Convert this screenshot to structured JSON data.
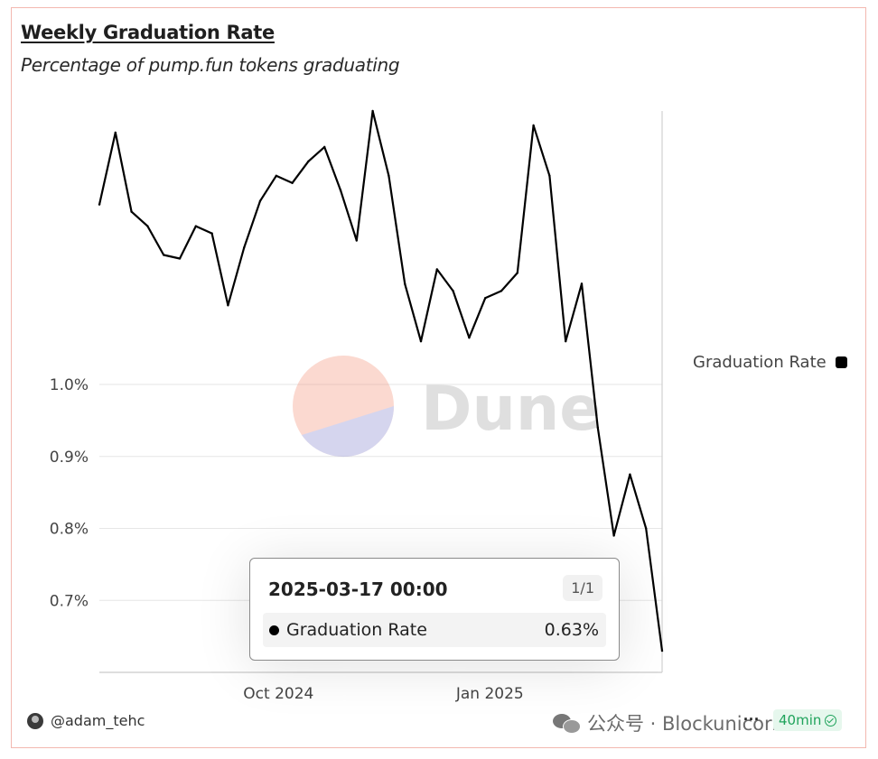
{
  "chart_data": {
    "type": "line",
    "title": "Weekly Graduation Rate",
    "subtitle": "Percentage of pump.fun tokens graduating",
    "series": [
      {
        "name": "Graduation Rate",
        "color": "#000000",
        "values": [
          1.25,
          1.35,
          1.24,
          1.22,
          1.18,
          1.175,
          1.22,
          1.21,
          1.11,
          1.19,
          1.255,
          1.29,
          1.28,
          1.31,
          1.33,
          1.27,
          1.2,
          1.38,
          1.29,
          1.14,
          1.06,
          1.16,
          1.13,
          1.065,
          1.12,
          1.13,
          1.155,
          1.36,
          1.29,
          1.06,
          1.14,
          0.94,
          0.79,
          0.875,
          0.8,
          0.63
        ]
      }
    ],
    "x_start": "2024-07-15",
    "x_end": "2025-03-17",
    "x_ticks": [
      "Oct 2024",
      "Jan 2025"
    ],
    "y_ticks": [
      "1.0%",
      "0.9%",
      "0.8%",
      "0.7%"
    ],
    "y_tick_values": [
      1.0,
      0.9,
      0.8,
      0.7
    ],
    "ylim": [
      0.6,
      1.38
    ],
    "legend": {
      "label": "Graduation Rate",
      "position": "right"
    },
    "grid": true
  },
  "watermark": "Dune",
  "tooltip": {
    "date": "2025-03-17 00:00",
    "count": "1/1",
    "label": "Graduation Rate",
    "value": "0.63%"
  },
  "footer": {
    "user": "@adam_tehc",
    "source": "公众号 · Blockunicorn",
    "more": "···",
    "freshness": "40min"
  }
}
